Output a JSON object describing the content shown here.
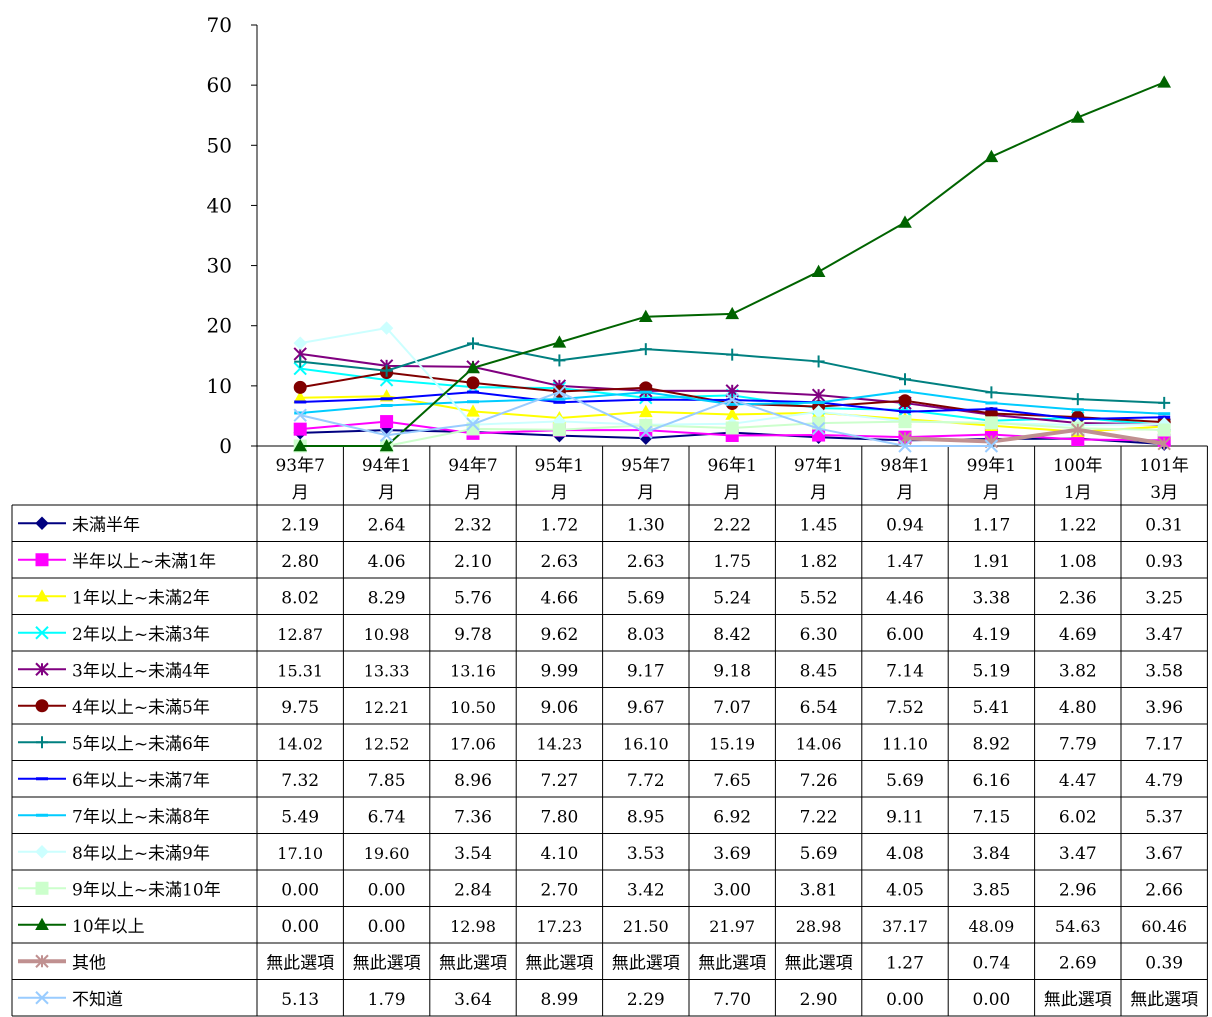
{
  "chart_data": {
    "type": "line",
    "title": "",
    "xlabel": "",
    "ylabel": "",
    "ylim": [
      0,
      70
    ],
    "yticks": [
      0,
      10,
      20,
      30,
      40,
      50,
      60,
      70
    ],
    "grid": false,
    "legend_placement": "table-left",
    "categories": [
      [
        "93年7",
        "月"
      ],
      [
        "94年1",
        "月"
      ],
      [
        "94年7",
        "月"
      ],
      [
        "95年1",
        "月"
      ],
      [
        "95年7",
        "月"
      ],
      [
        "96年1",
        "月"
      ],
      [
        "97年1",
        "月"
      ],
      [
        "98年1",
        "月"
      ],
      [
        "99年1",
        "月"
      ],
      [
        "100年",
        "1月"
      ],
      [
        "101年",
        "3月"
      ]
    ],
    "series": [
      {
        "name": "未滿半年",
        "color": "#000080",
        "marker": "diamond",
        "values": [
          2.19,
          2.64,
          2.32,
          1.72,
          1.3,
          2.22,
          1.45,
          0.94,
          1.17,
          1.22,
          0.31
        ],
        "labels": [
          "2.19",
          "2.64",
          "2.32",
          "1.72",
          "1.30",
          "2.22",
          "1.45",
          "0.94",
          "1.17",
          "1.22",
          "0.31"
        ]
      },
      {
        "name": "半年以上~未滿1年",
        "color": "#ff00ff",
        "marker": "square",
        "values": [
          2.8,
          4.06,
          2.1,
          2.63,
          2.63,
          1.75,
          1.82,
          1.47,
          1.91,
          1.08,
          0.93
        ],
        "labels": [
          "2.80",
          "4.06",
          "2.10",
          "2.63",
          "2.63",
          "1.75",
          "1.82",
          "1.47",
          "1.91",
          "1.08",
          "0.93"
        ]
      },
      {
        "name": "1年以上~未滿2年",
        "color": "#ffff00",
        "marker": "triangle",
        "values": [
          8.02,
          8.29,
          5.76,
          4.66,
          5.69,
          5.24,
          5.52,
          4.46,
          3.38,
          2.36,
          3.25
        ],
        "labels": [
          "8.02",
          "8.29",
          "5.76",
          "4.66",
          "5.69",
          "5.24",
          "5.52",
          "4.46",
          "3.38",
          "2.36",
          "3.25"
        ]
      },
      {
        "name": "2年以上~未滿3年",
        "color": "#00ffff",
        "marker": "x",
        "values": [
          12.87,
          10.98,
          9.78,
          9.62,
          8.03,
          8.42,
          6.3,
          6.0,
          4.19,
          4.69,
          3.47
        ],
        "labels": [
          "12.87",
          "10.98",
          "9.78",
          "9.62",
          "8.03",
          "8.42",
          "6.30",
          "6.00",
          "4.19",
          "4.69",
          "3.47"
        ]
      },
      {
        "name": "3年以上~未滿4年",
        "color": "#800080",
        "marker": "star",
        "values": [
          15.31,
          13.33,
          13.16,
          9.99,
          9.17,
          9.18,
          8.45,
          7.14,
          5.19,
          3.82,
          3.58
        ],
        "labels": [
          "15.31",
          "13.33",
          "13.16",
          "9.99",
          "9.17",
          "9.18",
          "8.45",
          "7.14",
          "5.19",
          "3.82",
          "3.58"
        ]
      },
      {
        "name": "4年以上~未滿5年",
        "color": "#800000",
        "marker": "circle",
        "values": [
          9.75,
          12.21,
          10.5,
          9.06,
          9.67,
          7.07,
          6.54,
          7.52,
          5.41,
          4.8,
          3.96
        ],
        "labels": [
          "9.75",
          "12.21",
          "10.50",
          "9.06",
          "9.67",
          "7.07",
          "6.54",
          "7.52",
          "5.41",
          "4.80",
          "3.96"
        ]
      },
      {
        "name": "5年以上~未滿6年",
        "color": "#008080",
        "marker": "plus",
        "values": [
          14.02,
          12.52,
          17.06,
          14.23,
          16.1,
          15.19,
          14.06,
          11.1,
          8.92,
          7.79,
          7.17
        ],
        "labels": [
          "14.02",
          "12.52",
          "17.06",
          "14.23",
          "16.10",
          "15.19",
          "14.06",
          "11.10",
          "8.92",
          "7.79",
          "7.17"
        ]
      },
      {
        "name": "6年以上~未滿7年",
        "color": "#0000ff",
        "marker": "dash",
        "values": [
          7.32,
          7.85,
          8.96,
          7.27,
          7.72,
          7.65,
          7.26,
          5.69,
          6.16,
          4.47,
          4.79
        ],
        "labels": [
          "7.32",
          "7.85",
          "8.96",
          "7.27",
          "7.72",
          "7.65",
          "7.26",
          "5.69",
          "6.16",
          "4.47",
          "4.79"
        ]
      },
      {
        "name": "7年以上~未滿8年",
        "color": "#00ccff",
        "marker": "dash",
        "values": [
          5.49,
          6.74,
          7.36,
          7.8,
          8.95,
          6.92,
          7.22,
          9.11,
          7.15,
          6.02,
          5.37
        ],
        "labels": [
          "5.49",
          "6.74",
          "7.36",
          "7.80",
          "8.95",
          "6.92",
          "7.22",
          "9.11",
          "7.15",
          "6.02",
          "5.37"
        ]
      },
      {
        "name": "8年以上~未滿9年",
        "color": "#ccffff",
        "marker": "diamond",
        "values": [
          17.1,
          19.6,
          3.54,
          4.1,
          3.53,
          3.69,
          5.69,
          4.08,
          3.84,
          3.47,
          3.67
        ],
        "labels": [
          "17.10",
          "19.60",
          "3.54",
          "4.10",
          "3.53",
          "3.69",
          "5.69",
          "4.08",
          "3.84",
          "3.47",
          "3.67"
        ]
      },
      {
        "name": "9年以上~未滿10年",
        "color": "#ccffcc",
        "marker": "square",
        "values": [
          0.0,
          0.0,
          2.84,
          2.7,
          3.42,
          3.0,
          3.81,
          4.05,
          3.85,
          2.96,
          2.66
        ],
        "labels": [
          "0.00",
          "0.00",
          "2.84",
          "2.70",
          "3.42",
          "3.00",
          "3.81",
          "4.05",
          "3.85",
          "2.96",
          "2.66"
        ]
      },
      {
        "name": "10年以上",
        "color": "#006400",
        "marker": "triangle",
        "values": [
          0.0,
          0.0,
          12.98,
          17.23,
          21.5,
          21.97,
          28.98,
          37.17,
          48.09,
          54.63,
          60.46
        ],
        "labels": [
          "0.00",
          "0.00",
          "12.98",
          "17.23",
          "21.50",
          "21.97",
          "28.98",
          "37.17",
          "48.09",
          "54.63",
          "60.46"
        ]
      },
      {
        "name": "其他",
        "color": "#c09090",
        "marker": "star",
        "values": [
          null,
          null,
          null,
          null,
          null,
          null,
          null,
          1.27,
          0.74,
          2.69,
          0.39
        ],
        "labels": [
          "無此選項",
          "無此選項",
          "無此選項",
          "無此選項",
          "無此選項",
          "無此選項",
          "無此選項",
          "1.27",
          "0.74",
          "2.69",
          "0.39"
        ]
      },
      {
        "name": "不知道",
        "color": "#99ccff",
        "marker": "x",
        "values": [
          5.13,
          1.79,
          3.64,
          8.99,
          2.29,
          7.7,
          2.9,
          0.0,
          0.0,
          null,
          null
        ],
        "labels": [
          "5.13",
          "1.79",
          "3.64",
          "8.99",
          "2.29",
          "7.70",
          "2.90",
          "0.00",
          "0.00",
          "無此選項",
          "無此選項"
        ]
      }
    ]
  }
}
